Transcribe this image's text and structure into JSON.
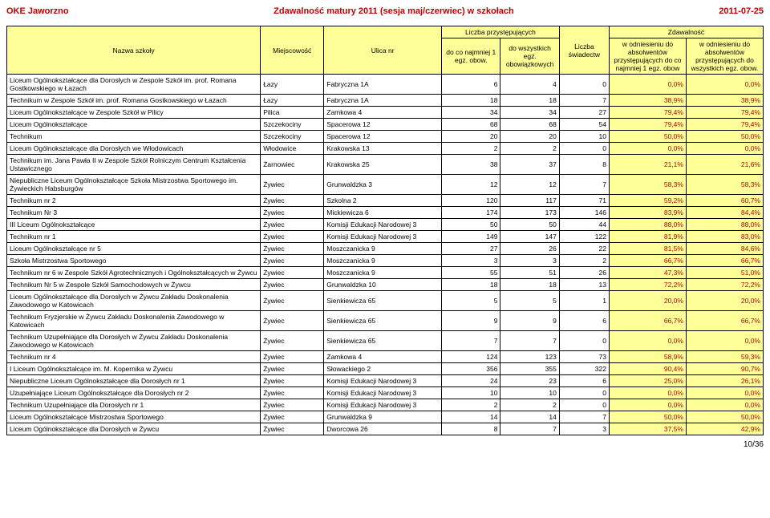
{
  "header": {
    "left": "OKE Jaworzno",
    "center": "Zdawalność matury 2011 (sesja maj/czerwiec) w szkołach",
    "right": "2011-07-25"
  },
  "colors": {
    "header_text": "#c00000",
    "highlight_bg": "#ffff99",
    "pct_text": "#c00000"
  },
  "table": {
    "group_headers": {
      "group1": "Liczba przystępujących",
      "group2": "Zdawalność"
    },
    "columns": [
      "Nazwa szkoły",
      "Miejscowość",
      "Ulica nr",
      "do co najmniej 1 egz. obow.",
      "do wszystkich egz. obowiązkowych",
      "Liczba świadectw",
      "w odniesieniu do absolwentów przystępujących do co najmniej 1 egz. obow",
      "w odniesieniu do absolwentów przystępujących do wszystkich egz. obow."
    ],
    "rows": [
      {
        "name": "Liceum Ogólnokształcące dla Dorosłych w Zespole Szkół im. prof. Romana Gostkowskiego w Łazach",
        "city": "Łazy",
        "addr": "Fabryczna 1A",
        "a": 6,
        "b": 4,
        "c": 0,
        "p1": "0,0%",
        "p2": "0,0%"
      },
      {
        "name": "Technikum w Zespole Szkół im. prof. Romana Gostkowskiego w Łazach",
        "city": "Łazy",
        "addr": "Fabryczna 1A",
        "a": 18,
        "b": 18,
        "c": 7,
        "p1": "38,9%",
        "p2": "38,9%"
      },
      {
        "name": "Liceum Ogólnokształcące w Zespole Szkół w Pilicy",
        "city": "Pilica",
        "addr": "Zamkowa 4",
        "a": 34,
        "b": 34,
        "c": 27,
        "p1": "79,4%",
        "p2": "79,4%"
      },
      {
        "name": "Liceum Ogólnokształcące",
        "city": "Szczekociny",
        "addr": "Spacerowa 12",
        "a": 68,
        "b": 68,
        "c": 54,
        "p1": "79,4%",
        "p2": "79,4%"
      },
      {
        "name": "Technikum",
        "city": "Szczekociny",
        "addr": "Spacerowa 12",
        "a": 20,
        "b": 20,
        "c": 10,
        "p1": "50,0%",
        "p2": "50,0%"
      },
      {
        "name": "Liceum Ogólnokształcące dla Dorosłych we Włodowicach",
        "city": "Włodowice",
        "addr": "Krakowska 13",
        "a": 2,
        "b": 2,
        "c": 0,
        "p1": "0,0%",
        "p2": "0,0%"
      },
      {
        "name": "Technikum im. Jana Pawła II w Zespole Szkół Rolniczym Centrum Kształcenia Ustawicznego",
        "city": "Żarnowiec",
        "addr": "Krakowska 25",
        "a": 38,
        "b": 37,
        "c": 8,
        "p1": "21,1%",
        "p2": "21,6%"
      },
      {
        "name": "Niepubliczne Liceum Ogólnokształcące Szkoła Mistrzostwa Sportowego im. Żywieckich Habsburgów",
        "city": "Żywiec",
        "addr": "Grunwaldzka 3",
        "a": 12,
        "b": 12,
        "c": 7,
        "p1": "58,3%",
        "p2": "58,3%"
      },
      {
        "name": "Technikum nr 2",
        "city": "Żywiec",
        "addr": "Szkolna 2",
        "a": 120,
        "b": 117,
        "c": 71,
        "p1": "59,2%",
        "p2": "60,7%"
      },
      {
        "name": "Technikum Nr 3",
        "city": "Żywiec",
        "addr": "Mickiewicza 6",
        "a": 174,
        "b": 173,
        "c": 146,
        "p1": "83,9%",
        "p2": "84,4%"
      },
      {
        "name": "III Liceum Ogólnokształcące",
        "city": "Żywiec",
        "addr": "Komisji Edukacji Narodowej 3",
        "a": 50,
        "b": 50,
        "c": 44,
        "p1": "88,0%",
        "p2": "88,0%"
      },
      {
        "name": "Technikum nr 1",
        "city": "Żywiec",
        "addr": "Komisji Edukacji Narodowej 3",
        "a": 149,
        "b": 147,
        "c": 122,
        "p1": "81,9%",
        "p2": "83,0%"
      },
      {
        "name": "Liceum Ogólnokształcące nr 5",
        "city": "Żywiec",
        "addr": "Moszczanicka 9",
        "a": 27,
        "b": 26,
        "c": 22,
        "p1": "81,5%",
        "p2": "84,6%"
      },
      {
        "name": "Szkoła Mistrzostwa Sportowego",
        "city": "Żywiec",
        "addr": "Moszczanicka 9",
        "a": 3,
        "b": 3,
        "c": 2,
        "p1": "66,7%",
        "p2": "66,7%"
      },
      {
        "name": "Technikum nr 6 w Zespole Szkół Agrotechnicznych i Ogólnokształcących w Żywcu",
        "city": "Żywiec",
        "addr": "Moszczanicka 9",
        "a": 55,
        "b": 51,
        "c": 26,
        "p1": "47,3%",
        "p2": "51,0%"
      },
      {
        "name": "Technikum Nr 5 w Zespole Szkół Samochodowych w Żywcu",
        "city": "Żywiec",
        "addr": "Grunwaldzka 10",
        "a": 18,
        "b": 18,
        "c": 13,
        "p1": "72,2%",
        "p2": "72,2%"
      },
      {
        "name": "Liceum Ogólnokształcące dla Dorosłych w Żywcu Zakładu Doskonalenia Zawodowego w Katowicach",
        "city": "Żywiec",
        "addr": "Sienkiewicza 65",
        "a": 5,
        "b": 5,
        "c": 1,
        "p1": "20,0%",
        "p2": "20,0%"
      },
      {
        "name": "Technikum Fryzjerskie w Żywcu Zakładu Doskonalenia Zawodowego w Katowicach",
        "city": "Żywiec",
        "addr": "Sienkiewicza 65",
        "a": 9,
        "b": 9,
        "c": 6,
        "p1": "66,7%",
        "p2": "66,7%"
      },
      {
        "name": "Technikum Uzupełniające dla Dorosłych w Żywcu Zakładu Doskonalenia Zawodowego w Katowicach",
        "city": "Żywiec",
        "addr": "Sienkiewicza 65",
        "a": 7,
        "b": 7,
        "c": 0,
        "p1": "0,0%",
        "p2": "0,0%"
      },
      {
        "name": "Technikum nr 4",
        "city": "Żywiec",
        "addr": "Zamkowa 4",
        "a": 124,
        "b": 123,
        "c": 73,
        "p1": "58,9%",
        "p2": "59,3%"
      },
      {
        "name": "I Liceum Ogólnokształcące im. M. Kopernika w Żywcu",
        "city": "Żywiec",
        "addr": "Słowackiego 2",
        "a": 356,
        "b": 355,
        "c": 322,
        "p1": "90,4%",
        "p2": "90,7%"
      },
      {
        "name": "Niepubliczne Liceum Ogólnokształcące dla Dorosłych nr 1",
        "city": "Żywiec",
        "addr": "Komisji Edukacji Narodowej 3",
        "a": 24,
        "b": 23,
        "c": 6,
        "p1": "25,0%",
        "p2": "26,1%"
      },
      {
        "name": "Uzupełniające Liceum Ogólnokształcące dla Dorosłych nr 2",
        "city": "Żywiec",
        "addr": "Komisji Edukacji Narodowej 3",
        "a": 10,
        "b": 10,
        "c": 0,
        "p1": "0,0%",
        "p2": "0,0%"
      },
      {
        "name": "Technikum Uzupełniające dla Dorosłych nr 1",
        "city": "Żywiec",
        "addr": "Komisji Edukacji Narodowej 3",
        "a": 2,
        "b": 2,
        "c": 0,
        "p1": "0,0%",
        "p2": "0,0%"
      },
      {
        "name": "Liceum Ogólnokształcące Mistrzostwa Sportowego",
        "city": "Żywiec",
        "addr": "Grunwaldzka 9",
        "a": 14,
        "b": 14,
        "c": 7,
        "p1": "50,0%",
        "p2": "50,0%"
      },
      {
        "name": "Liceum Ogólnokształcące dla Dorosłych w Żywcu",
        "city": "Żywiec",
        "addr": "Dworcowa 26",
        "a": 8,
        "b": 7,
        "c": 3,
        "p1": "37,5%",
        "p2": "42,9%"
      }
    ]
  },
  "page": "10/36"
}
